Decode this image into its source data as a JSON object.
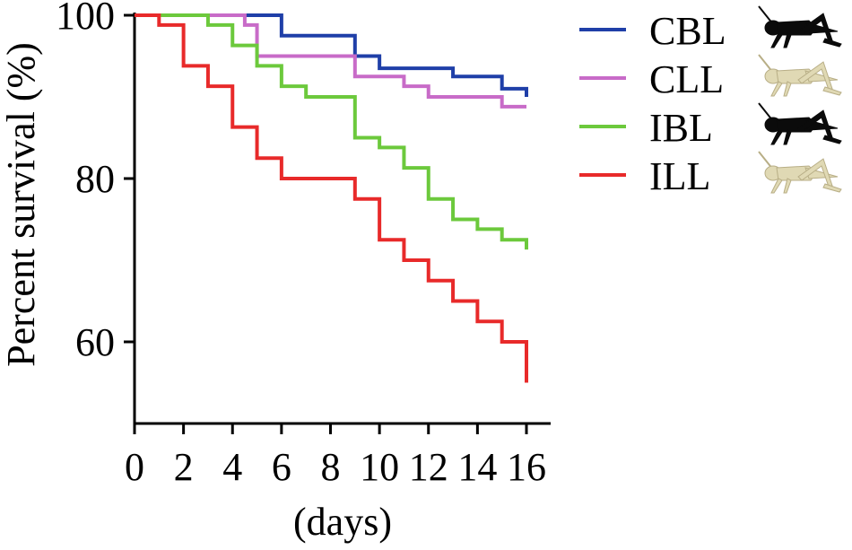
{
  "chart_data": {
    "type": "line",
    "step": true,
    "title": "",
    "xlabel": "(days)",
    "ylabel": "Percent survival (%)",
    "xlim": [
      0,
      16
    ],
    "ylim": [
      50,
      100
    ],
    "xticks": [
      0,
      2,
      4,
      6,
      8,
      10,
      12,
      14,
      16
    ],
    "xtick_labels": [
      "0",
      "2",
      "4",
      "6",
      "8",
      "10",
      "12",
      "14",
      "16"
    ],
    "yticks": [
      60,
      80,
      100
    ],
    "ytick_labels": [
      "60",
      "80",
      "100"
    ],
    "grid": false,
    "legend_position": "right",
    "series": [
      {
        "name": "CBL",
        "color": "#1f3fa8",
        "icon": "black-cricket-icon",
        "x": [
          0,
          6,
          9,
          10,
          13,
          15,
          16,
          16
        ],
        "y": [
          100,
          97.5,
          95,
          93.5,
          92.5,
          91,
          91,
          90
        ]
      },
      {
        "name": "CLL",
        "color": "#c86bc8",
        "icon": "pale-cricket-icon",
        "x": [
          0,
          4.5,
          5,
          9,
          11,
          12,
          15,
          16
        ],
        "y": [
          100,
          98.8,
          95,
          92.5,
          91.3,
          90,
          88.8,
          88.8
        ]
      },
      {
        "name": "IBL",
        "color": "#6cc93c",
        "icon": "black-cricket-icon",
        "x": [
          0,
          3,
          4,
          5,
          6,
          7,
          9,
          10,
          11,
          12,
          13,
          14,
          15,
          16,
          16
        ],
        "y": [
          100,
          98.8,
          96.3,
          93.8,
          91.3,
          90,
          85,
          83.8,
          81.3,
          77.5,
          75,
          73.8,
          72.5,
          72.5,
          71.3
        ]
      },
      {
        "name": "ILL",
        "color": "#e82a2a",
        "icon": "pale-cricket-icon",
        "x": [
          0,
          1,
          2,
          3,
          4,
          5,
          6,
          9,
          10,
          11,
          12,
          13,
          14,
          15,
          16,
          16
        ],
        "y": [
          100,
          98.8,
          93.8,
          91.3,
          86.3,
          82.5,
          80,
          77.5,
          72.5,
          70,
          67.5,
          65,
          62.5,
          60,
          60,
          55
        ]
      }
    ]
  }
}
